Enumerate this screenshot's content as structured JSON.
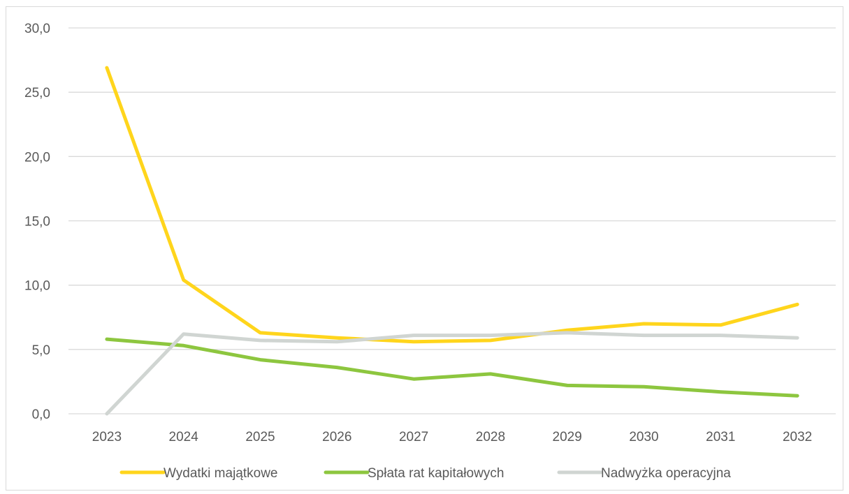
{
  "chart_data": {
    "type": "line",
    "title": "",
    "xlabel": "",
    "ylabel": "",
    "categories": [
      "2023",
      "2024",
      "2025",
      "2026",
      "2027",
      "2028",
      "2029",
      "2030",
      "2031",
      "2032"
    ],
    "ylim": [
      0,
      30
    ],
    "yticks": [
      "0,0",
      "5,0",
      "10,0",
      "15,0",
      "20,0",
      "25,0",
      "30,0"
    ],
    "grid": true,
    "legend_position": "bottom",
    "series": [
      {
        "name": "Wydatki majątkowe",
        "color": "#FFD51C",
        "values": [
          26.9,
          10.4,
          6.3,
          5.9,
          5.6,
          5.7,
          6.5,
          7.0,
          6.9,
          8.5
        ]
      },
      {
        "name": "Spłata rat kapitałowych",
        "color": "#8DC63F",
        "values": [
          5.8,
          5.3,
          4.2,
          3.6,
          2.7,
          3.1,
          2.2,
          2.1,
          1.7,
          1.4
        ]
      },
      {
        "name": "Nadwyżka operacyjna",
        "color": "#D0D5D2",
        "values": [
          0.0,
          6.2,
          5.7,
          5.6,
          6.1,
          6.1,
          6.3,
          6.1,
          6.1,
          5.9
        ]
      }
    ]
  }
}
